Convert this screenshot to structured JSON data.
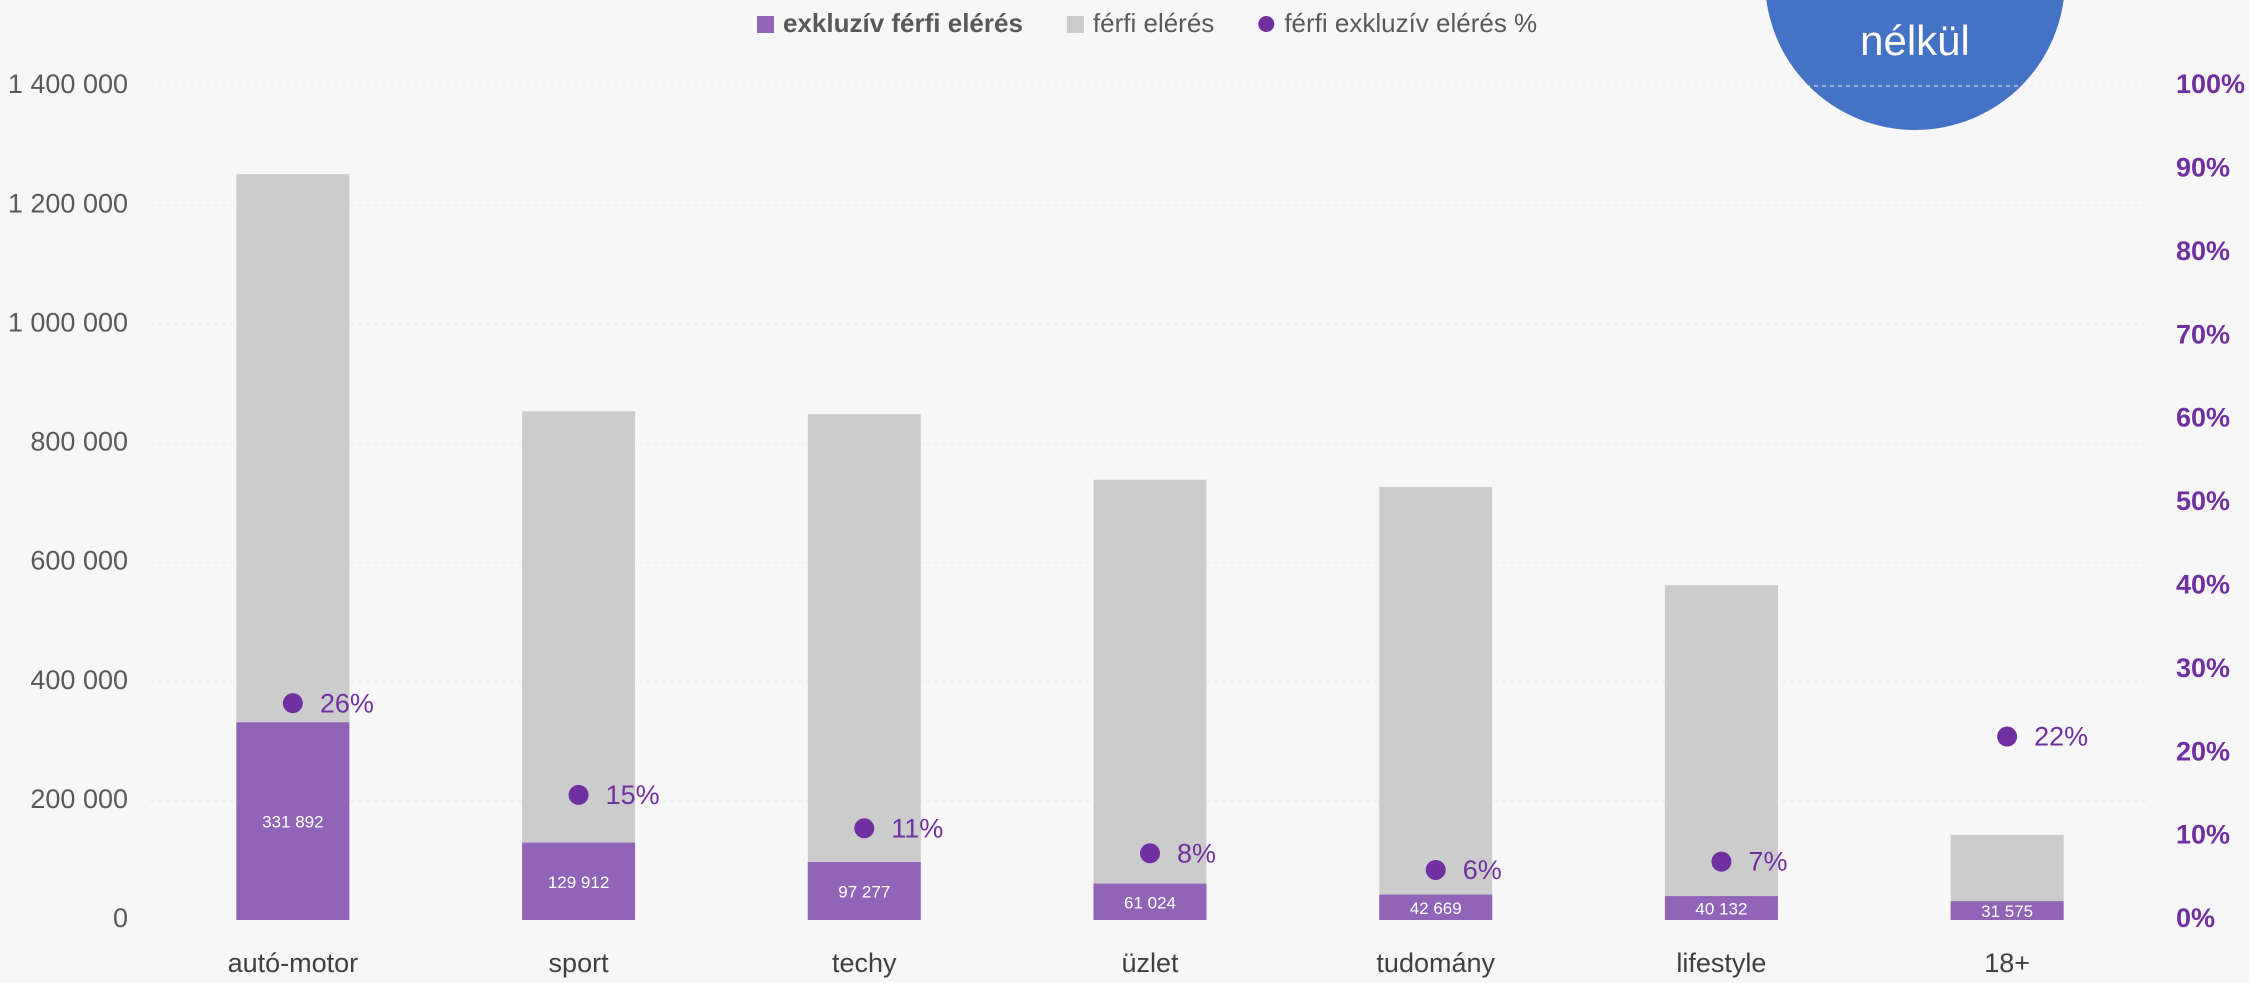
{
  "chart_data": {
    "type": "bar",
    "categories": [
      "autó-motor",
      "sport",
      "techy",
      "üzlet",
      "tudomány",
      "lifestyle",
      "18+"
    ],
    "series": [
      {
        "name": "exkluzív férfi elérés",
        "color": "#9164b8",
        "values": [
          331892,
          129912,
          97277,
          61024,
          42669,
          40132,
          31575
        ],
        "value_labels": [
          "331 892",
          "129 912",
          "97 277",
          "61 024",
          "42 669",
          "40 132",
          "31 575"
        ]
      },
      {
        "name": "férfi elérés",
        "color": "#cccccc",
        "values": [
          1252000,
          854000,
          849000,
          739000,
          727000,
          562000,
          143000
        ]
      },
      {
        "name": "férfi exkluzív elérés %",
        "color": "#7030a0",
        "axis": "y2",
        "values": [
          26,
          15,
          11,
          8,
          6,
          7,
          22
        ],
        "value_labels": [
          "26%",
          "15%",
          "11%",
          "8%",
          "6%",
          "7%",
          "22%"
        ]
      }
    ],
    "ylim": [
      0,
      1400000
    ],
    "yticks": [
      0,
      {
        "value": 200000,
        "label": "200 000"
      },
      {
        "value": 400000,
        "label": "400 000"
      },
      {
        "value": 600000,
        "label": "600 000"
      },
      {
        "value": 800000,
        "label": "800 000"
      },
      {
        "value": 1000000,
        "label": "1 000 000"
      },
      {
        "value": 1200000,
        "label": "1 200 000"
      },
      {
        "value": 1400000,
        "label": "1 400 000"
      }
    ],
    "y2lim": [
      0,
      100
    ],
    "y2ticks": [
      {
        "value": 0,
        "label": "0%"
      },
      {
        "value": 10,
        "label": "10%"
      },
      {
        "value": 20,
        "label": "20%"
      },
      {
        "value": 30,
        "label": "30%"
      },
      {
        "value": 40,
        "label": "40%"
      },
      {
        "value": 50,
        "label": "50%"
      },
      {
        "value": 60,
        "label": "60%"
      },
      {
        "value": 70,
        "label": "70%"
      },
      {
        "value": 80,
        "label": "80%"
      },
      {
        "value": 90,
        "label": "90%"
      },
      {
        "value": 100,
        "label": "100%"
      }
    ],
    "grid": true,
    "legend": "top",
    "badge": "nélkül"
  }
}
